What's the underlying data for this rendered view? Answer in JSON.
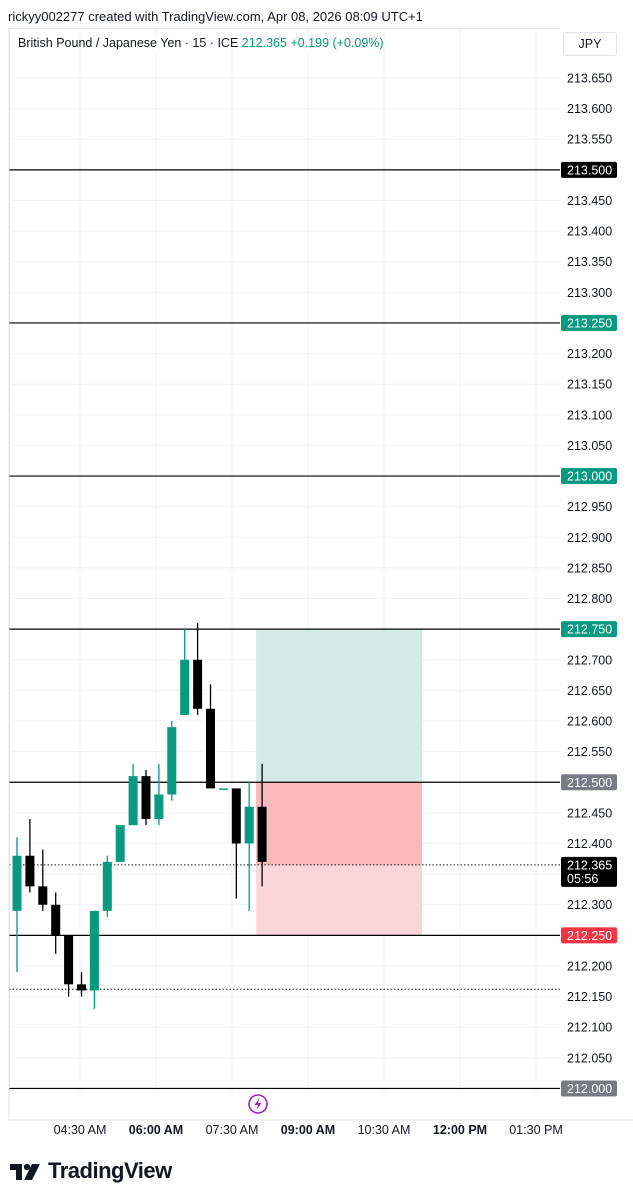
{
  "header": {
    "credit": "rickyy002277 created with TradingView.com, Apr 08, 2026 08:09 UTC+1",
    "symbol": "British Pound / Japanese Yen · 15 · ICE",
    "last_price": "212.365",
    "change": "+0.199 (+0.09%)",
    "currency": "JPY"
  },
  "chart_data": {
    "type": "candlestick",
    "y_axis_ticks": [
      "213.650",
      "213.600",
      "213.550",
      "213.450",
      "213.400",
      "213.350",
      "213.300",
      "213.200",
      "213.150",
      "213.100",
      "213.050",
      "212.950",
      "212.900",
      "212.850",
      "212.800",
      "212.700",
      "212.650",
      "212.600",
      "212.550",
      "212.450",
      "212.400",
      "212.300",
      "212.200",
      "212.150",
      "212.100",
      "212.050"
    ],
    "x_axis_labels": [
      {
        "text": "04:30 AM",
        "bold": false
      },
      {
        "text": "06:00 AM",
        "bold": true
      },
      {
        "text": "07:30 AM",
        "bold": false
      },
      {
        "text": "09:00 AM",
        "bold": true
      },
      {
        "text": "10:30 AM",
        "bold": false
      },
      {
        "text": "12:00 PM",
        "bold": true
      },
      {
        "text": "01:30 PM",
        "bold": false
      }
    ],
    "horizontal_lines": [
      {
        "price": 213.5,
        "label": "213.500",
        "label_color": "#000000",
        "line_color": "#000000"
      },
      {
        "price": 213.25,
        "label": "213.250",
        "label_color": "#089981",
        "line_color": "#000000"
      },
      {
        "price": 213.0,
        "label": "213.000",
        "label_color": "#089981",
        "line_color": "#000000"
      },
      {
        "price": 212.75,
        "label": "212.750",
        "label_color": "#089981",
        "line_color": "#000000"
      },
      {
        "price": 212.5,
        "label": "212.500",
        "label_color": "#787b86",
        "line_color": "#000000"
      },
      {
        "price": 212.25,
        "label": "212.250",
        "label_color": "#f23645",
        "line_color": "#000000"
      },
      {
        "price": 212.0,
        "label": "212.000",
        "label_color": "#787b86",
        "line_color": "#000000"
      }
    ],
    "dotted_lines": [
      {
        "price": 212.365
      },
      {
        "price": 212.162
      }
    ],
    "current_price": {
      "price": 212.365,
      "label": "212.365",
      "countdown": "05:56"
    },
    "position_tool": {
      "entry": 212.5,
      "target": 212.75,
      "stop": 212.25,
      "current": 212.365,
      "start_index": 18.5,
      "end_index": 31.4,
      "profit_color": "#d2ece5",
      "loss_color": "#f8b9bc",
      "loss_light_color": "#fbd6d9"
    },
    "candles": [
      {
        "o": 212.29,
        "h": 212.41,
        "l": 212.19,
        "c": 212.38
      },
      {
        "o": 212.38,
        "h": 212.44,
        "l": 212.32,
        "c": 212.33
      },
      {
        "o": 212.33,
        "h": 212.39,
        "l": 212.29,
        "c": 212.3
      },
      {
        "o": 212.3,
        "h": 212.32,
        "l": 212.22,
        "c": 212.25
      },
      {
        "o": 212.25,
        "h": 212.25,
        "l": 212.15,
        "c": 212.17
      },
      {
        "o": 212.17,
        "h": 212.19,
        "l": 212.15,
        "c": 212.16
      },
      {
        "o": 212.16,
        "h": 212.29,
        "l": 212.13,
        "c": 212.29
      },
      {
        "o": 212.29,
        "h": 212.38,
        "l": 212.28,
        "c": 212.37
      },
      {
        "o": 212.37,
        "h": 212.43,
        "l": 212.37,
        "c": 212.43
      },
      {
        "o": 212.43,
        "h": 212.53,
        "l": 212.43,
        "c": 212.51
      },
      {
        "o": 212.51,
        "h": 212.52,
        "l": 212.43,
        "c": 212.44
      },
      {
        "o": 212.44,
        "h": 212.53,
        "l": 212.43,
        "c": 212.48
      },
      {
        "o": 212.48,
        "h": 212.6,
        "l": 212.47,
        "c": 212.59
      },
      {
        "o": 212.61,
        "h": 212.75,
        "l": 212.61,
        "c": 212.7
      },
      {
        "o": 212.7,
        "h": 212.76,
        "l": 212.61,
        "c": 212.62
      },
      {
        "o": 212.62,
        "h": 212.66,
        "l": 212.49,
        "c": 212.49
      },
      {
        "o": 212.49,
        "h": 212.49,
        "l": 212.49,
        "c": 212.49
      },
      {
        "o": 212.49,
        "h": 212.49,
        "l": 212.31,
        "c": 212.4
      },
      {
        "o": 212.4,
        "h": 212.5,
        "l": 212.29,
        "c": 212.46
      },
      {
        "o": 212.46,
        "h": 212.53,
        "l": 212.33,
        "c": 212.37
      }
    ],
    "colors": {
      "up": "#089981",
      "down": "#000000"
    }
  },
  "footer": {
    "logo_text": "TradingView",
    "icon_name": "lightning-icon"
  }
}
